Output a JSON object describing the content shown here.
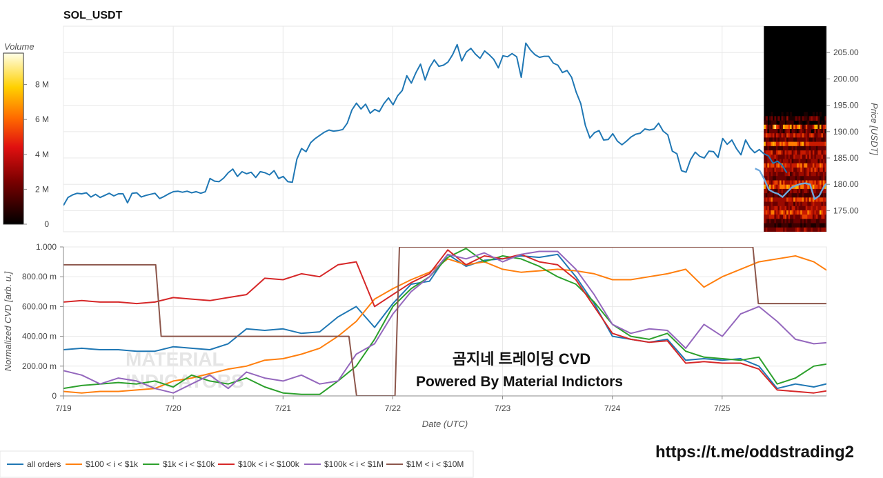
{
  "chart_data": [
    {
      "type": "line",
      "title": "SOL_USDT",
      "ylabel": "Price [USDT]",
      "ylim": [
        171,
        210
      ],
      "xlim": [
        0,
        6.95
      ],
      "x_tick_labels": [
        "7/19",
        "7/20",
        "7/21",
        "7/22",
        "7/23",
        "7/24",
        "7/25"
      ],
      "y_ticks": [
        175,
        180,
        185,
        190,
        195,
        200,
        205
      ],
      "y_tick_labels": [
        "175.00",
        "180.00",
        "185.00",
        "190.00",
        "195.00",
        "200.00",
        "205.00"
      ],
      "grid": true,
      "series": [
        {
          "color": "#1f77b4",
          "x_start": 0,
          "x_step": 0.0417,
          "values": [
            176,
            177.5,
            178,
            178.3,
            178.2,
            178.4,
            177.6,
            178.1,
            177.5,
            177.9,
            178.3,
            177.8,
            178.2,
            178.2,
            176.5,
            178.3,
            178.4,
            177.6,
            177.9,
            178.1,
            178.3,
            177.3,
            177.7,
            178.2,
            178.6,
            178.7,
            178.5,
            178.7,
            178.4,
            178.6,
            178.3,
            178.6,
            181.1,
            180.6,
            180.5,
            181.2,
            182.2,
            182.9,
            181.5,
            182.4,
            182.0,
            182.3,
            181.3,
            182.4,
            182.2,
            181.8,
            182.6,
            181.1,
            181.5,
            180.5,
            180.4,
            184.8,
            186.8,
            186.2,
            187.9,
            188.7,
            189.3,
            189.9,
            190.3,
            190.1,
            190.2,
            190.4,
            191.6,
            194.1,
            195.4,
            194.3,
            195.2,
            193.5,
            194.2,
            193.8,
            195.3,
            196.4,
            195.1,
            196.8,
            197.8,
            200.6,
            199.2,
            201.2,
            202.8,
            199.8,
            202.2,
            203.6,
            202.4,
            202.6,
            203.2,
            204.6,
            206.5,
            203.4,
            205.1,
            205.8,
            204.7,
            203.9,
            205.3,
            204.6,
            203.7,
            202.1,
            204.4,
            204.2,
            204.8,
            204.2,
            200.3,
            206.8,
            205.5,
            204.6,
            204.1,
            204.3,
            204.3,
            203.0,
            202.6,
            201.2,
            201.6,
            200.3,
            197.5,
            195.3,
            191.2,
            188.8,
            189.8,
            190.2,
            188.4,
            188.5,
            189.6,
            188.2,
            187.5,
            188.2,
            189.0,
            189.5,
            189.7,
            190.5,
            190.3,
            190.5,
            191.6,
            190.1,
            189.4,
            186.3,
            185.8,
            182.6,
            182.3,
            184.7,
            186.1,
            185.3,
            185.0,
            186.3,
            186.2,
            185.1,
            188.7,
            187.6,
            188.4,
            186.8,
            185.6,
            188.4,
            186.9,
            186.0,
            186.6,
            185.8,
            185.4,
            184.0,
            184.4,
            183.6,
            182.2
          ]
        },
        {
          "color": "#6fa8dc",
          "x_start": 6.3,
          "x_step": 0.0417,
          "values": [
            183,
            182.6,
            181,
            179,
            178.5,
            178.2,
            177.6,
            178.5,
            179.4,
            179.8,
            180.1,
            180.2,
            180.0,
            177.2,
            177.8,
            179.5,
            180.6,
            181.8,
            182.6,
            183.5,
            184.7,
            185.6,
            186.2
          ]
        }
      ]
    },
    {
      "type": "line",
      "xlabel": "Date (UTC)",
      "ylabel": "Normalized CVD [arb. u.]",
      "ylim": [
        0,
        1.0
      ],
      "xlim": [
        0,
        6.95
      ],
      "x_tick_labels": [
        "7/19",
        "7/20",
        "7/21",
        "7/22",
        "7/23",
        "7/24",
        "7/25"
      ],
      "y_ticks": [
        0,
        0.2,
        0.4,
        0.6,
        0.8,
        1.0
      ],
      "y_tick_labels": [
        "0",
        "200.00 m",
        "400.00 m",
        "600.00 m",
        "800.00 m",
        "1.000"
      ],
      "grid": true,
      "series": [
        {
          "name": "all orders",
          "color": "#1f77b4",
          "x_step": 0.1667,
          "values": [
            0.31,
            0.32,
            0.31,
            0.31,
            0.3,
            0.3,
            0.33,
            0.32,
            0.31,
            0.35,
            0.45,
            0.44,
            0.45,
            0.42,
            0.43,
            0.53,
            0.6,
            0.46,
            0.62,
            0.75,
            0.77,
            0.95,
            0.87,
            0.91,
            0.92,
            0.94,
            0.93,
            0.95,
            0.8,
            0.62,
            0.4,
            0.38,
            0.36,
            0.38,
            0.24,
            0.25,
            0.24,
            0.25,
            0.2,
            0.05,
            0.08,
            0.06,
            0.09,
            0.08,
            0.1,
            0.08,
            0.09,
            0.1
          ]
        },
        {
          "name": "$100 < i < $1k",
          "color": "#ff7f0e",
          "x_step": 0.1667,
          "values": [
            0.03,
            0.02,
            0.03,
            0.03,
            0.04,
            0.05,
            0.1,
            0.12,
            0.15,
            0.18,
            0.2,
            0.24,
            0.25,
            0.28,
            0.32,
            0.4,
            0.5,
            0.65,
            0.72,
            0.78,
            0.83,
            0.92,
            0.88,
            0.9,
            0.85,
            0.83,
            0.84,
            0.85,
            0.84,
            0.82,
            0.78,
            0.78,
            0.8,
            0.82,
            0.85,
            0.73,
            0.8,
            0.85,
            0.9,
            0.92,
            0.94,
            0.9,
            0.82,
            0.8,
            0.85,
            0.93,
            0.98,
            0.97
          ]
        },
        {
          "name": "$1k < i < $10k",
          "color": "#2ca02c",
          "x_step": 0.1667,
          "values": [
            0.05,
            0.07,
            0.08,
            0.09,
            0.08,
            0.1,
            0.06,
            0.14,
            0.1,
            0.08,
            0.12,
            0.06,
            0.02,
            0.01,
            0.01,
            0.1,
            0.2,
            0.38,
            0.6,
            0.72,
            0.8,
            0.93,
            0.99,
            0.9,
            0.94,
            0.92,
            0.87,
            0.8,
            0.75,
            0.63,
            0.48,
            0.4,
            0.38,
            0.42,
            0.3,
            0.26,
            0.25,
            0.24,
            0.26,
            0.08,
            0.12,
            0.2,
            0.22,
            0.16,
            0.14,
            0.18,
            0.2,
            0.2
          ]
        },
        {
          "name": "$10k < i < $100k",
          "color": "#d62728",
          "x_step": 0.1667,
          "values": [
            0.63,
            0.64,
            0.63,
            0.63,
            0.62,
            0.63,
            0.66,
            0.65,
            0.64,
            0.66,
            0.68,
            0.79,
            0.78,
            0.82,
            0.8,
            0.88,
            0.9,
            0.6,
            0.68,
            0.76,
            0.82,
            0.98,
            0.88,
            0.94,
            0.92,
            0.95,
            0.9,
            0.88,
            0.78,
            0.6,
            0.42,
            0.38,
            0.36,
            0.37,
            0.22,
            0.23,
            0.22,
            0.22,
            0.18,
            0.04,
            0.03,
            0.02,
            0.04,
            0.03,
            0.02,
            0.02,
            0.03,
            0.04
          ]
        },
        {
          "name": "$100k < i < $1M",
          "color": "#9467bd",
          "x_step": 0.1667,
          "values": [
            0.17,
            0.14,
            0.08,
            0.12,
            0.1,
            0.05,
            0.02,
            0.08,
            0.14,
            0.05,
            0.16,
            0.12,
            0.1,
            0.14,
            0.08,
            0.1,
            0.28,
            0.35,
            0.55,
            0.7,
            0.8,
            0.95,
            0.92,
            0.96,
            0.9,
            0.95,
            0.97,
            0.97,
            0.85,
            0.68,
            0.48,
            0.42,
            0.45,
            0.44,
            0.32,
            0.48,
            0.4,
            0.55,
            0.6,
            0.5,
            0.38,
            0.35,
            0.36,
            0.38,
            0.36,
            0.4,
            0.4,
            0.4
          ]
        },
        {
          "name": "$1M < i < $10M",
          "color": "#8c564b",
          "shape": "step",
          "points": [
            [
              0,
              0.88
            ],
            [
              0.84,
              0.88
            ],
            [
              0.89,
              0.4
            ],
            [
              2.6,
              0.4
            ],
            [
              2.67,
              0.0
            ],
            [
              3.02,
              0.0
            ],
            [
              3.06,
              1.0
            ],
            [
              6.28,
              1.0
            ],
            [
              6.33,
              0.62
            ],
            [
              6.95,
              0.62
            ]
          ]
        }
      ],
      "legend": {
        "placement": "bottom-left"
      }
    },
    {
      "type": "heatmap",
      "colorbar_title": "Volume",
      "colorbar_ticks": [
        0,
        2,
        4,
        6,
        8
      ],
      "colorbar_tick_labels": [
        "0",
        "2 M",
        "4 M",
        "6 M",
        "8 M"
      ],
      "colorbar_max": 9.8
    }
  ],
  "overlay": {
    "title": "곰지네 트레이딩 CVD",
    "subtitle": "Powered By Material Indictors",
    "url": "https://t.me/oddstrading2",
    "watermark_line1": "MATERIAL",
    "watermark_line2": "INDICATORS"
  }
}
